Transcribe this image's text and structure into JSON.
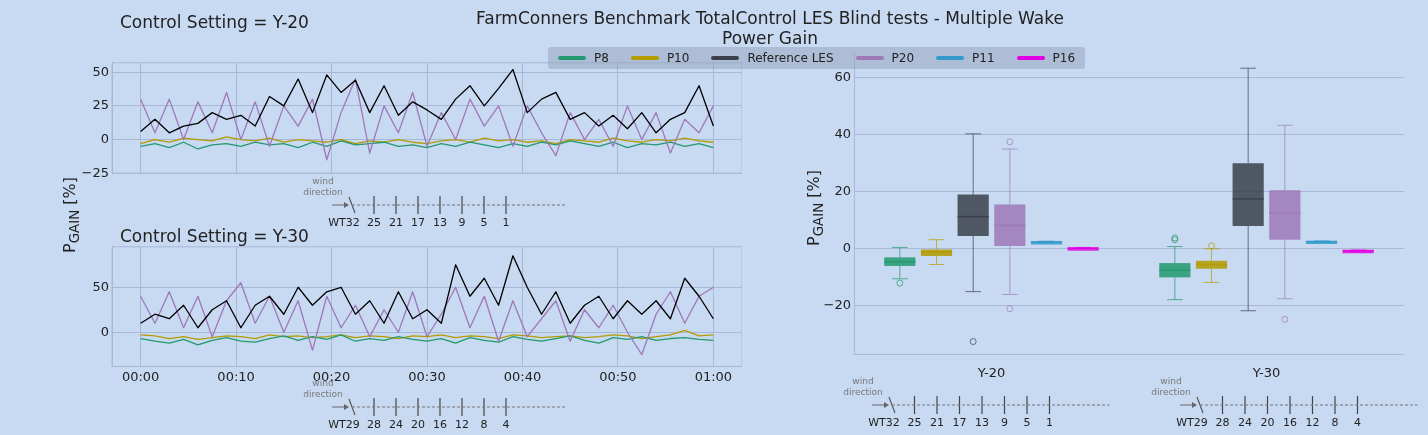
{
  "chart_data": [
    {
      "type": "line",
      "title": "Control Setting = Y-20",
      "ylabel": "P$_{GAIN}$  [%]",
      "annotations": [
        "wind direction",
        "WT32",
        "25",
        "21",
        "17",
        "13",
        "9",
        "5",
        "1"
      ],
      "grid": true,
      "tick_labels": "y",
      "x": [
        0,
        0.025,
        0.05,
        0.075,
        0.1,
        0.125,
        0.15,
        0.175,
        0.2,
        0.225,
        0.25,
        0.275,
        0.3,
        0.325,
        0.35,
        0.375,
        0.4,
        0.425,
        0.45,
        0.475,
        0.5,
        0.525,
        0.55,
        0.575,
        0.6,
        0.625,
        0.65,
        0.675,
        0.7,
        0.725,
        0.75,
        0.775,
        0.8,
        0.825,
        0.85,
        0.875,
        0.9,
        0.925,
        0.95,
        0.975,
        1
      ],
      "xlim": [
        -0.05,
        1.05
      ],
      "xticks": [
        {
          "value": 0,
          "label": null
        },
        {
          "value": 0.16667,
          "label": null
        },
        {
          "value": 0.33333,
          "label": null
        },
        {
          "value": 0.5,
          "label": null
        },
        {
          "value": 0.66667,
          "label": null
        },
        {
          "value": 0.83333,
          "label": null
        },
        {
          "value": 1,
          "label": null
        }
      ],
      "ylim": [
        -25,
        57
      ],
      "yticks": [
        {
          "value": -25,
          "label": "−25"
        },
        0,
        25,
        50
      ],
      "series": [
        {
          "color": "#000000",
          "values": [
            6,
            15,
            5,
            10,
            12,
            20,
            15,
            18,
            10,
            32,
            25,
            45,
            20,
            48,
            35,
            44,
            20,
            40,
            18,
            28,
            22,
            15,
            30,
            40,
            25,
            38,
            52,
            20,
            30,
            35,
            15,
            20,
            10,
            18,
            8,
            20,
            5,
            15,
            20,
            40,
            10
          ]
        },
        {
          "color": "#9e78b8",
          "values": [
            30,
            5,
            30,
            0,
            28,
            5,
            35,
            0,
            28,
            -5,
            25,
            10,
            30,
            -15,
            20,
            45,
            -10,
            25,
            5,
            35,
            -5,
            20,
            0,
            30,
            10,
            25,
            -5,
            25,
            5,
            -12,
            20,
            0,
            15,
            -5,
            25,
            0,
            20,
            -10,
            15,
            5,
            25
          ]
        },
        {
          "color": "#22996e",
          "values": [
            -5,
            -3,
            -6,
            -2,
            -7,
            -4,
            -3,
            -5,
            -2,
            -4,
            -3,
            -6,
            -2,
            -5,
            -1,
            -4,
            -3,
            -2,
            -5,
            -4,
            -6,
            -3,
            -5,
            -2,
            -4,
            -6,
            -3,
            -5,
            -2,
            -4,
            -1,
            -3,
            -5,
            -2,
            -6,
            -3,
            -4,
            -2,
            -5,
            -3,
            -6
          ]
        },
        {
          "color": "#b39b00",
          "values": [
            -3,
            0,
            -2,
            1,
            0,
            -1,
            2,
            0,
            -1,
            1,
            -2,
            0,
            -1,
            -2,
            0,
            -3,
            -1,
            -2,
            0,
            -2,
            -3,
            -1,
            0,
            -2,
            1,
            -1,
            0,
            -2,
            -1,
            -3,
            0,
            -1,
            -2,
            1,
            -1,
            -2,
            0,
            -1,
            1,
            -1,
            -2
          ]
        }
      ]
    },
    {
      "type": "line",
      "title": "Control Setting = Y-30",
      "annotations": [
        "wind direction",
        "WT29",
        "28",
        "24",
        "20",
        "16",
        "12",
        "8",
        "4"
      ],
      "grid": true,
      "x": [
        0,
        0.025,
        0.05,
        0.075,
        0.1,
        0.125,
        0.15,
        0.175,
        0.2,
        0.225,
        0.25,
        0.275,
        0.3,
        0.325,
        0.35,
        0.375,
        0.4,
        0.425,
        0.45,
        0.475,
        0.5,
        0.525,
        0.55,
        0.575,
        0.6,
        0.625,
        0.65,
        0.675,
        0.7,
        0.725,
        0.75,
        0.775,
        0.8,
        0.825,
        0.85,
        0.875,
        0.9,
        0.925,
        0.95,
        0.975,
        1
      ],
      "xlim": [
        -0.05,
        1.05
      ],
      "xticks": [
        {
          "value": 0,
          "label": "00:00"
        },
        {
          "value": 0.16667,
          "label": "00:10"
        },
        {
          "value": 0.33333,
          "label": "00:20"
        },
        {
          "value": 0.5,
          "label": "00:30"
        },
        {
          "value": 0.66667,
          "label": "00:40"
        },
        {
          "value": 0.83333,
          "label": "00:50"
        },
        {
          "value": 1,
          "label": "01:00"
        }
      ],
      "ylim": [
        -38,
        95
      ],
      "yticks": [
        0,
        50
      ],
      "series": [
        {
          "color": "#000000",
          "values": [
            10,
            20,
            15,
            30,
            5,
            25,
            35,
            5,
            30,
            40,
            20,
            50,
            30,
            45,
            50,
            20,
            35,
            10,
            45,
            15,
            25,
            10,
            75,
            40,
            60,
            30,
            85,
            50,
            20,
            45,
            10,
            30,
            40,
            15,
            35,
            20,
            35,
            15,
            60,
            40,
            15
          ]
        },
        {
          "color": "#9e78b8",
          "values": [
            40,
            10,
            45,
            5,
            40,
            -5,
            35,
            55,
            10,
            40,
            0,
            35,
            -20,
            40,
            5,
            30,
            -5,
            25,
            0,
            45,
            -5,
            20,
            50,
            5,
            40,
            -10,
            35,
            -5,
            15,
            35,
            -10,
            25,
            5,
            30,
            0,
            -25,
            20,
            45,
            10,
            40,
            50
          ]
        },
        {
          "color": "#22996e",
          "values": [
            -7,
            -10,
            -12,
            -8,
            -14,
            -9,
            -6,
            -10,
            -11,
            -7,
            -4,
            -9,
            -5,
            -8,
            -3,
            -10,
            -7,
            -9,
            -5,
            -8,
            -10,
            -7,
            -12,
            -6,
            -9,
            -11,
            -5,
            -8,
            -10,
            -7,
            -4,
            -9,
            -12,
            -6,
            -8,
            -5,
            -9,
            -7,
            -6,
            -8,
            -9
          ]
        },
        {
          "color": "#b39b00",
          "values": [
            -3,
            -4,
            -7,
            -5,
            -8,
            -6,
            -4,
            -5,
            -7,
            -3,
            -5,
            -4,
            -6,
            -5,
            -3,
            -6,
            -4,
            -5,
            -7,
            -4,
            -5,
            -3,
            -6,
            -4,
            -5,
            -7,
            -3,
            -4,
            -6,
            -5,
            -4,
            -6,
            -5,
            -3,
            -4,
            -7,
            -5,
            -3,
            2,
            -4,
            -3
          ]
        }
      ]
    },
    {
      "type": "box",
      "title": "FarmConners Benchmark TotalControl LES Blind tests - Multiple Wake",
      "subtitle": "Power Gain",
      "ylabel": "P$_{GAIN}$  [%]",
      "legend": "top",
      "grid": "y",
      "annotations": [
        "wind direction",
        "WT32",
        "25",
        "21",
        "17",
        "13",
        "9",
        "5",
        "1",
        "wind direction",
        "WT29",
        "28",
        "24",
        "20",
        "16",
        "12",
        "8",
        "4"
      ],
      "categories": [
        "Y-20",
        "Y-30"
      ],
      "ylim": [
        -37,
        68
      ],
      "yticks": [
        {
          "value": -20,
          "label": "−20"
        },
        0,
        20,
        40,
        60
      ],
      "series": [
        {
          "name": "P8",
          "color": "#22996e",
          "boxes": [
            {
              "low": -10.5,
              "q1": -6,
              "median": -4.5,
              "q3": -3,
              "high": 0.5,
              "outliers": [
                -12
              ]
            },
            {
              "low": -17.8,
              "q1": -10,
              "median": -7.5,
              "q3": -5,
              "high": 0.8,
              "outliers": [
                3.2,
                3.8
              ]
            }
          ]
        },
        {
          "name": "P10",
          "color": "#b39b00",
          "boxes": [
            {
              "low": -5.5,
              "q1": -2.5,
              "median": -1.2,
              "q3": -0.2,
              "high": 3.2
            },
            {
              "low": -11.8,
              "q1": -7,
              "median": -5.5,
              "q3": -4.2,
              "high": 0,
              "outliers": [
                1
              ]
            }
          ]
        },
        {
          "name": "Reference LES",
          "color": "#3a3f4a",
          "boxes": [
            {
              "low": -15,
              "q1": 4.5,
              "median": 11.3,
              "q3": 19,
              "high": 40.3,
              "outliers": [
                -32.5
              ]
            },
            {
              "low": -21.7,
              "q1": 8,
              "median": 17.5,
              "q3": 30,
              "high": 63.3
            }
          ]
        },
        {
          "name": "P20",
          "color": "#9e78b8",
          "boxes": [
            {
              "low": -16,
              "q1": 1,
              "median": 8.2,
              "q3": 15.5,
              "high": 35,
              "outliers": [
                37.5,
                -21
              ]
            },
            {
              "low": -17.5,
              "q1": 3.2,
              "median": 12.5,
              "q3": 20.5,
              "high": 43.3,
              "outliers": [
                -24.7
              ]
            }
          ]
        },
        {
          "name": "P11",
          "color": "#3399cc",
          "boxes": [
            {
              "low": 2.3,
              "q1": 2.4,
              "median": 2.5,
              "q3": 2.6,
              "high": 2.7
            },
            {
              "low": 2.4,
              "q1": 2.5,
              "median": 2.6,
              "q3": 2.7,
              "high": 2.8
            }
          ]
        },
        {
          "name": "P16",
          "color": "#e100e1",
          "boxes": [
            {
              "low": 0.1,
              "q1": 0.2,
              "median": 0.3,
              "q3": 0.4,
              "high": 0.5
            },
            {
              "low": -0.8,
              "q1": -0.7,
              "median": -0.6,
              "q3": -0.5,
              "high": -0.4
            }
          ]
        }
      ]
    }
  ]
}
